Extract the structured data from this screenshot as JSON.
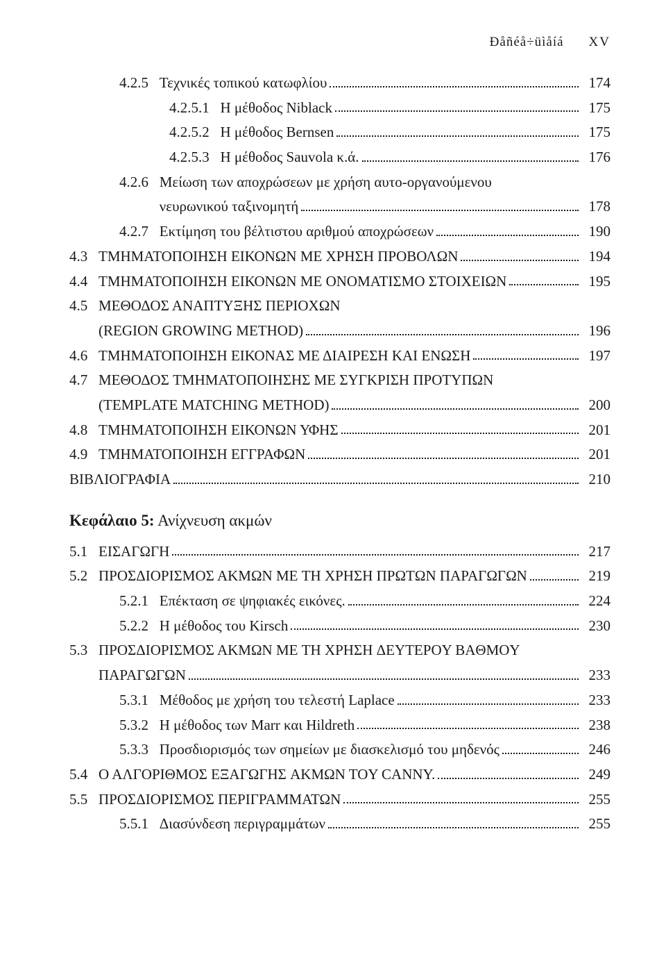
{
  "header": {
    "left": "Ðåñéå÷üìåíá",
    "right": "XV"
  },
  "chapter_heading": {
    "prefix": "Κεφάλαιο 5:",
    "title": " Ανίχνευση ακμών"
  },
  "toc": [
    {
      "indent": 1,
      "num": "4.2.5   ",
      "title": "Τεχνικές τοπικού κατωφλίου",
      "page": "174"
    },
    {
      "indent": 2,
      "num": "4.2.5.1   ",
      "title": "Η μέθοδος Niblack",
      "page": "175"
    },
    {
      "indent": 2,
      "num": "4.2.5.2   ",
      "title": "Η μέθοδος Bernsen",
      "page": "175"
    },
    {
      "indent": 2,
      "num": "4.2.5.3   ",
      "title": "Η μέθοδος Sauvola κ.ά.",
      "page": "176"
    },
    {
      "indent": 1,
      "num": "4.2.6   ",
      "title": "Μείωση των αποχρώσεων με χρήση αυτο-οργανούμενου",
      "page": null,
      "cont": true
    },
    {
      "indent": 1,
      "num": "           ",
      "title": "νευρωνικού ταξινομητή",
      "page": "178"
    },
    {
      "indent": 1,
      "num": "4.2.7   ",
      "title": "Εκτίμηση του βέλτιστου αριθμού αποχρώσεων",
      "page": "190"
    },
    {
      "indent": 0,
      "num": "4.3   ",
      "title": "TMHΜΑΤΟΠΟΙΗΣΗ ΕΙΚΟΝΩΝ ΜΕ ΧΡΗΣΗ ΠΡΟΒΟΛΩΝ",
      "page": "194"
    },
    {
      "indent": 0,
      "num": "4.4   ",
      "title": "TMHΜΑΤΟΠΟΙΗΣΗ ΕΙΚΟΝΩΝ ΜΕ ΟΝΟΜΑΤΙΣΜΟ ΣTOIXEIΩN",
      "page": "195"
    },
    {
      "indent": 0,
      "num": "4.5   ",
      "title": "ΜΕΘΟΔΟΣ ΑΝΑΠΤΥΞΗΣ ΠΕΡΙΟΧΩΝ",
      "page": null,
      "cont": true
    },
    {
      "indent": 0,
      "num": "        ",
      "title": "(REGION GROWING METHOD)",
      "page": "196"
    },
    {
      "indent": 0,
      "num": "4.6   ",
      "title": "TMHΜΑΤΟΠΟΙΗΣΗ ΕΙΚΟΝΑΣ ΜΕ ΔΙΑΙΡΕΣΗ ΚΑΙ ΕΝΩΣΗ",
      "page": "197"
    },
    {
      "indent": 0,
      "num": "4.7   ",
      "title": "ΜΕΘΟΔΟΣ TMHMATΟΠΟΙHΣHΣ ΜΕ ΣΥΓΚΡΙΣΗ ΠΡΟΤΥΠΩΝ",
      "page": null,
      "cont": true
    },
    {
      "indent": 0,
      "num": "        ",
      "title": "(TEMPLATE MATCHING METHOD)",
      "page": "200"
    },
    {
      "indent": 0,
      "num": "4.8   ",
      "title": "TMHΜΑΤΟΠΟΙΗΣΗ ΕΙΚΟΝΩΝ ΥΦHΣ",
      "page": "201"
    },
    {
      "indent": 0,
      "num": "4.9   ",
      "title": "TMHΜΑΤΟΠΟΙΗΣΗ ΕΓΓΡΑΦΩΝ",
      "page": "201"
    },
    {
      "indent": 0,
      "num": "",
      "title": "ΒΙΒΛΙΟΓΡΑΦΙΑ",
      "page": "210"
    }
  ],
  "toc2": [
    {
      "indent": 0,
      "num": "5.1   ",
      "title": "ΕΙΣΑΓΩΓΗ",
      "page": "217"
    },
    {
      "indent": 0,
      "num": "5.2   ",
      "title": "ΠPOΣΔIOPIΣMOΣ ΑΚΜΩΝ ΜΕ TH XPHΣH ΠPΩTΩN ΠΑΡΑΓΩΓΩΝ",
      "page": "219"
    },
    {
      "indent": 1,
      "num": "5.2.1   ",
      "title": "Επέκταση σε ψηφιακές εικόνες.",
      "page": "224"
    },
    {
      "indent": 1,
      "num": "5.2.2   ",
      "title": "Η μέθοδος του Kirsch",
      "page": "230"
    },
    {
      "indent": 0,
      "num": "5.3   ",
      "title": "ΠPOΣΔIOPIΣMOΣ ΑΚΜΩΝ ΜΕ TH XPHΣH ΔEYTEPOY BAΘMOY",
      "page": null,
      "cont": true
    },
    {
      "indent": 0,
      "num": "        ",
      "title": "ΠΑΡΑΓΩΓΩΝ",
      "page": "233"
    },
    {
      "indent": 1,
      "num": "5.3.1   ",
      "title": "Μέθοδος με χρήση του τελεστή Laplace",
      "page": "233"
    },
    {
      "indent": 1,
      "num": "5.3.2   ",
      "title": "Η μέθοδος των Marr και Hildreth",
      "page": "238"
    },
    {
      "indent": 1,
      "num": "5.3.3   ",
      "title": "Προσδιορισμός των σημείων με διασκελισμό του μηδενός",
      "page": "246"
    },
    {
      "indent": 0,
      "num": "5.4   ",
      "title": "Ο ΑΛΓΟΡΙΘΜΟΣ ΕΞΑΓΩΓΗΣ AKMΩN TOY CANNY.",
      "page": "249"
    },
    {
      "indent": 0,
      "num": "5.5   ",
      "title": "ΠPOΣΔIOPIΣMOΣ ΠΕΡΙΓΡΑΜΜΑΤΩΝ",
      "page": "255"
    },
    {
      "indent": 1,
      "num": "5.5.1   ",
      "title": "Διασύνδεση περιγραμμάτων",
      "page": "255"
    }
  ]
}
